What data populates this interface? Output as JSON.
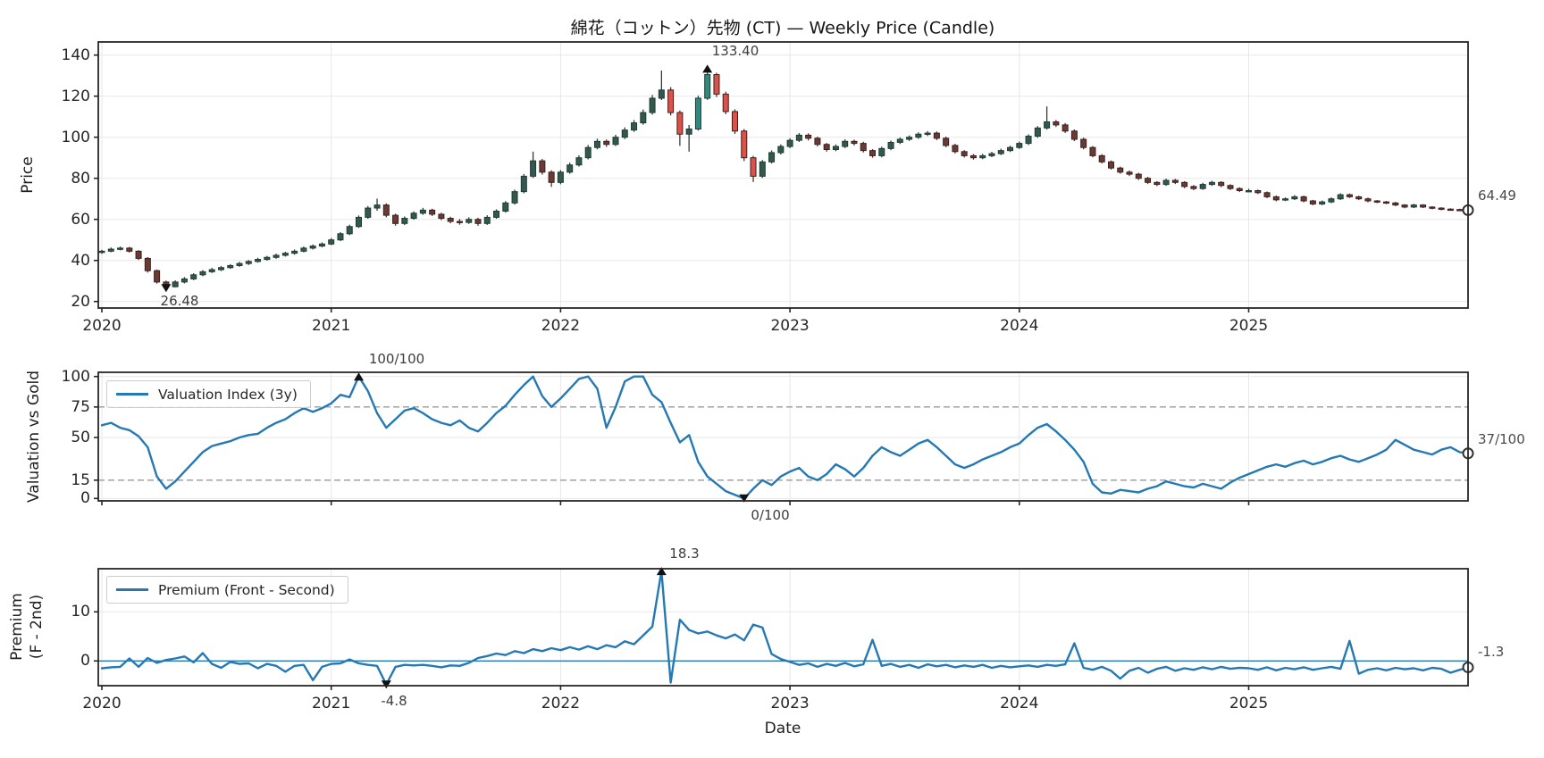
{
  "chart_data": [
    {
      "type": "candlestick",
      "title": "綿花（コットン）先物 (CT) — Weekly Price (Candle)",
      "ylabel": "Price",
      "yticks": [
        140,
        120,
        100,
        80,
        60,
        40,
        20
      ],
      "ylim": [
        17,
        146.5
      ],
      "x_start": 2020.0,
      "x_step": 0.04,
      "x_tick_labels": [
        "2020",
        "2021",
        "2022",
        "2023",
        "2024",
        "2025"
      ],
      "grid": true,
      "up_color": "#33584e",
      "down_color": "#6b3a34",
      "up_color_strong": "#2e8b7f",
      "down_color_strong": "#d9534a",
      "annotations": [
        {
          "label": "133.40",
          "t": 2022.64,
          "value": 133.4,
          "marker": "up"
        },
        {
          "label": "26.48",
          "t": 2020.28,
          "value": 26.48,
          "marker": "down"
        }
      ],
      "last_label": "64.49",
      "last_value": 64.49,
      "ohlc": [
        [
          44.0,
          45.2,
          43.2,
          44.5
        ],
        [
          44.5,
          46.3,
          44.0,
          45.5
        ],
        [
          45.5,
          46.8,
          44.9,
          46.0
        ],
        [
          46.0,
          46.6,
          43.8,
          44.5
        ],
        [
          44.5,
          45.0,
          40.2,
          41.0
        ],
        [
          41.0,
          41.6,
          34.1,
          35.0
        ],
        [
          35.0,
          35.6,
          28.7,
          29.5
        ],
        [
          29.5,
          30.2,
          26.48,
          27.2
        ],
        [
          27.2,
          30.3,
          26.9,
          29.5
        ],
        [
          29.5,
          31.9,
          28.8,
          31.0
        ],
        [
          31.0,
          33.8,
          30.4,
          33.0
        ],
        [
          33.0,
          35.3,
          32.3,
          34.5
        ],
        [
          34.5,
          36.4,
          33.9,
          35.5
        ],
        [
          35.5,
          37.3,
          34.8,
          36.5
        ],
        [
          36.5,
          38.2,
          35.9,
          37.5
        ],
        [
          37.5,
          39.3,
          36.9,
          38.5
        ],
        [
          38.5,
          40.2,
          37.8,
          39.5
        ],
        [
          39.5,
          41.3,
          38.9,
          40.5
        ],
        [
          40.5,
          42.2,
          39.9,
          41.5
        ],
        [
          41.5,
          43.3,
          40.8,
          42.5
        ],
        [
          42.5,
          44.2,
          41.9,
          43.5
        ],
        [
          43.5,
          45.3,
          42.8,
          44.5
        ],
        [
          44.5,
          46.8,
          43.9,
          46.0
        ],
        [
          46.0,
          47.8,
          45.3,
          47.0
        ],
        [
          47.0,
          48.8,
          46.4,
          48.0
        ],
        [
          48.0,
          50.9,
          47.4,
          50.0
        ],
        [
          50.0,
          53.8,
          49.4,
          53.0
        ],
        [
          53.0,
          57.4,
          52.3,
          56.5
        ],
        [
          56.5,
          61.9,
          55.8,
          61.0
        ],
        [
          61.0,
          66.5,
          60.3,
          65.5
        ],
        [
          65.5,
          70.1,
          64.2,
          67.0
        ],
        [
          67.0,
          67.8,
          61.0,
          62.0
        ],
        [
          62.0,
          62.8,
          56.9,
          58.0
        ],
        [
          58.0,
          61.4,
          57.2,
          60.5
        ],
        [
          60.5,
          63.9,
          59.8,
          63.0
        ],
        [
          63.0,
          65.6,
          62.2,
          64.5
        ],
        [
          64.5,
          65.2,
          61.6,
          62.5
        ],
        [
          62.5,
          63.2,
          59.6,
          60.5
        ],
        [
          60.5,
          61.3,
          58.1,
          59.0
        ],
        [
          59.0,
          60.2,
          57.4,
          58.5
        ],
        [
          58.5,
          61.0,
          57.8,
          60.0
        ],
        [
          60.0,
          60.8,
          56.9,
          58.0
        ],
        [
          58.0,
          62.0,
          57.3,
          61.0
        ],
        [
          61.0,
          64.9,
          60.3,
          64.0
        ],
        [
          64.0,
          68.9,
          63.3,
          68.0
        ],
        [
          68.0,
          74.5,
          67.2,
          73.5
        ],
        [
          73.5,
          82.1,
          72.7,
          81.0
        ],
        [
          81.0,
          93.0,
          80.2,
          88.5
        ],
        [
          88.5,
          89.4,
          81.8,
          83.0
        ],
        [
          83.0,
          83.9,
          75.8,
          78.0
        ],
        [
          78.0,
          84.0,
          77.1,
          83.0
        ],
        [
          83.0,
          87.6,
          82.2,
          86.5
        ],
        [
          86.5,
          91.2,
          85.7,
          90.0
        ],
        [
          90.0,
          96.2,
          89.2,
          95.0
        ],
        [
          95.0,
          99.3,
          94.1,
          98.0
        ],
        [
          98.0,
          98.9,
          95.3,
          96.5
        ],
        [
          96.5,
          101.2,
          95.7,
          100.0
        ],
        [
          100.0,
          104.8,
          99.1,
          103.5
        ],
        [
          103.5,
          108.4,
          102.6,
          107.0
        ],
        [
          107.0,
          113.5,
          106.1,
          112.0
        ],
        [
          112.0,
          120.6,
          111.0,
          119.0
        ],
        [
          119.0,
          132.5,
          118.1,
          123.0
        ],
        [
          123.0,
          124.4,
          110.6,
          112.0
        ],
        [
          112.0,
          113.0,
          95.8,
          101.5
        ],
        [
          101.5,
          106.0,
          93.0,
          104.0
        ],
        [
          104.0,
          120.2,
          103.2,
          119.0
        ],
        [
          119.0,
          133.4,
          118.2,
          130.5
        ],
        [
          130.5,
          131.4,
          119.6,
          121.0
        ],
        [
          121.0,
          122.2,
          111.2,
          112.5
        ],
        [
          112.5,
          113.6,
          101.6,
          103.0
        ],
        [
          103.0,
          104.0,
          88.4,
          90.0
        ],
        [
          90.0,
          90.9,
          78.2,
          81.0
        ],
        [
          81.0,
          88.9,
          80.2,
          88.0
        ],
        [
          88.0,
          93.6,
          87.2,
          92.5
        ],
        [
          92.5,
          96.5,
          91.6,
          95.5
        ],
        [
          95.5,
          99.5,
          94.7,
          98.5
        ],
        [
          98.5,
          102.0,
          97.7,
          101.0
        ],
        [
          101.0,
          101.9,
          98.4,
          99.5
        ],
        [
          99.5,
          100.3,
          95.5,
          96.5
        ],
        [
          96.5,
          97.2,
          93.0,
          94.0
        ],
        [
          94.0,
          96.5,
          93.2,
          95.5
        ],
        [
          95.5,
          99.0,
          94.7,
          98.0
        ],
        [
          98.0,
          98.8,
          96.0,
          97.0
        ],
        [
          97.0,
          97.8,
          92.6,
          93.5
        ],
        [
          93.5,
          94.2,
          90.0,
          91.0
        ],
        [
          91.0,
          95.4,
          90.2,
          94.5
        ],
        [
          94.5,
          98.4,
          93.7,
          97.5
        ],
        [
          97.5,
          99.9,
          96.7,
          99.0
        ],
        [
          99.0,
          100.9,
          98.2,
          100.0
        ],
        [
          100.0,
          102.4,
          99.2,
          101.5
        ],
        [
          101.5,
          103.0,
          100.6,
          102.0
        ],
        [
          102.0,
          102.8,
          98.6,
          99.5
        ],
        [
          99.5,
          100.3,
          95.1,
          96.0
        ],
        [
          96.0,
          96.8,
          92.1,
          93.0
        ],
        [
          93.0,
          93.7,
          90.1,
          91.0
        ],
        [
          91.0,
          91.8,
          89.1,
          90.0
        ],
        [
          90.0,
          91.9,
          89.3,
          91.0
        ],
        [
          91.0,
          92.9,
          90.3,
          92.0
        ],
        [
          92.0,
          94.4,
          91.3,
          93.5
        ],
        [
          93.5,
          95.9,
          92.8,
          95.0
        ],
        [
          95.0,
          97.9,
          94.3,
          97.0
        ],
        [
          97.0,
          101.4,
          96.2,
          100.5
        ],
        [
          100.5,
          105.4,
          99.7,
          104.5
        ],
        [
          104.5,
          115.0,
          103.7,
          107.5
        ],
        [
          107.5,
          108.4,
          105.0,
          106.0
        ],
        [
          106.0,
          106.9,
          102.1,
          103.0
        ],
        [
          103.0,
          103.8,
          98.1,
          99.0
        ],
        [
          99.0,
          99.8,
          94.1,
          95.0
        ],
        [
          95.0,
          95.7,
          90.2,
          91.0
        ],
        [
          91.0,
          91.8,
          87.2,
          88.0
        ],
        [
          88.0,
          88.7,
          84.2,
          85.0
        ],
        [
          85.0,
          85.7,
          82.2,
          83.0
        ],
        [
          83.0,
          83.8,
          81.1,
          82.0
        ],
        [
          82.0,
          82.7,
          79.2,
          80.0
        ],
        [
          80.0,
          80.7,
          77.2,
          78.0
        ],
        [
          78.0,
          78.6,
          76.2,
          77.0
        ],
        [
          77.0,
          79.8,
          76.3,
          79.0
        ],
        [
          79.0,
          79.7,
          77.2,
          78.0
        ],
        [
          78.0,
          78.6,
          75.2,
          76.0
        ],
        [
          76.0,
          76.7,
          74.2,
          75.0
        ],
        [
          75.0,
          77.8,
          74.4,
          77.0
        ],
        [
          77.0,
          78.8,
          76.3,
          78.0
        ],
        [
          78.0,
          78.6,
          75.7,
          76.5
        ],
        [
          76.5,
          77.1,
          74.3,
          75.0
        ],
        [
          75.0,
          75.6,
          73.3,
          74.0
        ],
        [
          74.0,
          74.9,
          73.3,
          74.0
        ],
        [
          74.0,
          74.5,
          72.3,
          73.0
        ],
        [
          73.0,
          73.6,
          70.3,
          71.0
        ],
        [
          71.0,
          71.6,
          68.8,
          69.5
        ],
        [
          69.5,
          70.7,
          68.9,
          70.0
        ],
        [
          70.0,
          71.8,
          69.4,
          71.0
        ],
        [
          71.0,
          71.6,
          68.3,
          69.0
        ],
        [
          69.0,
          69.5,
          66.9,
          67.5
        ],
        [
          67.5,
          69.2,
          66.9,
          68.5
        ],
        [
          68.5,
          70.7,
          67.9,
          70.0
        ],
        [
          70.0,
          72.7,
          69.4,
          72.0
        ],
        [
          72.0,
          72.6,
          70.4,
          71.0
        ],
        [
          71.0,
          71.5,
          69.4,
          70.0
        ],
        [
          70.0,
          70.6,
          68.3,
          69.0
        ],
        [
          69.0,
          69.4,
          67.9,
          68.5
        ],
        [
          68.5,
          69.0,
          67.4,
          68.0
        ],
        [
          68.0,
          68.5,
          66.4,
          67.0
        ],
        [
          67.0,
          67.4,
          65.4,
          66.0
        ],
        [
          66.0,
          67.6,
          65.5,
          67.0
        ],
        [
          67.0,
          67.4,
          65.5,
          66.0
        ],
        [
          66.0,
          66.4,
          64.9,
          65.5
        ],
        [
          65.5,
          65.9,
          64.4,
          65.0
        ],
        [
          65.0,
          65.4,
          64.2,
          64.8
        ],
        [
          64.8,
          65.2,
          64.1,
          64.6
        ],
        [
          64.6,
          65.0,
          63.8,
          64.49
        ]
      ]
    },
    {
      "type": "line",
      "name": "Valuation Index (3y)",
      "ylabel": "Valuation vs Gold",
      "yticks": [
        100,
        75,
        50,
        15,
        0
      ],
      "ylim": [
        -2,
        103.4
      ],
      "dashed_levels": [
        75,
        15
      ],
      "line_color": "#2479b5",
      "annotations": [
        {
          "label": "100/100",
          "t": 2021.12,
          "value": 100,
          "marker": "up"
        },
        {
          "label": "0/100",
          "t": 2022.8,
          "value": 0,
          "marker": "down"
        }
      ],
      "last_label": "37/100",
      "last_value": 37,
      "values": [
        60,
        62,
        58,
        56,
        51,
        42,
        18,
        8,
        14,
        22,
        30,
        38,
        43,
        45,
        47,
        50,
        52,
        53,
        58,
        62,
        65,
        70,
        74,
        71,
        74,
        78,
        85,
        83,
        100,
        88,
        70,
        58,
        65,
        72,
        74,
        70,
        65,
        62,
        60,
        64,
        58,
        55,
        62,
        70,
        76,
        85,
        93,
        100,
        84,
        75,
        82,
        90,
        98,
        100,
        90,
        58,
        75,
        96,
        100,
        100,
        85,
        79,
        62,
        46,
        52,
        30,
        18,
        12,
        6,
        3,
        0,
        8,
        15,
        11,
        18,
        22,
        25,
        18,
        15,
        20,
        28,
        24,
        18,
        25,
        35,
        42,
        38,
        35,
        40,
        45,
        48,
        42,
        35,
        28,
        25,
        28,
        32,
        35,
        38,
        42,
        45,
        52,
        58,
        61,
        55,
        48,
        40,
        30,
        12,
        5,
        4,
        7,
        6,
        5,
        8,
        10,
        14,
        12,
        10,
        9,
        12,
        10,
        8,
        13,
        17,
        20,
        23,
        26,
        28,
        26,
        29,
        31,
        28,
        30,
        33,
        35,
        32,
        30,
        33,
        36,
        40,
        48,
        44,
        40,
        38,
        36,
        40,
        42,
        38,
        37
      ]
    },
    {
      "type": "line",
      "name": "Premium (Front - Second)",
      "ylabel": "Premium\n(F - 2nd)",
      "xlabel": "Date",
      "yticks": [
        10,
        0
      ],
      "ylim": [
        -5.0,
        18.8
      ],
      "zero_line": true,
      "line_color": "#2479b5",
      "annotations": [
        {
          "label": "18.3",
          "t": 2022.44,
          "value": 18.3,
          "marker": "up"
        },
        {
          "label": "-4.8",
          "t": 2021.24,
          "value": -4.8,
          "marker": "down"
        }
      ],
      "last_label": "-1.3",
      "last_value": -1.3,
      "values": [
        -1.5,
        -1.3,
        -1.2,
        0.5,
        -1.2,
        0.6,
        -0.4,
        0.2,
        0.5,
        0.9,
        -0.3,
        1.6,
        -0.6,
        -1.4,
        -0.2,
        -0.6,
        -0.5,
        -1.5,
        -0.6,
        -1.0,
        -2.2,
        -1.0,
        -0.8,
        -3.9,
        -1.2,
        -0.6,
        -0.5,
        0.3,
        -0.5,
        -0.8,
        -1.0,
        -4.8,
        -1.2,
        -0.8,
        -0.9,
        -0.8,
        -1.0,
        -1.3,
        -0.9,
        -1.0,
        -0.4,
        0.6,
        1.0,
        1.5,
        1.2,
        2.0,
        1.6,
        2.4,
        2.0,
        2.6,
        2.2,
        2.8,
        2.3,
        3.0,
        2.4,
        3.2,
        2.8,
        4.0,
        3.4,
        5.2,
        7.0,
        18.3,
        -4.4,
        8.4,
        6.3,
        5.6,
        6.0,
        5.2,
        4.6,
        5.4,
        4.2,
        7.4,
        6.8,
        1.4,
        0.4,
        -0.2,
        -0.8,
        -0.5,
        -1.2,
        -0.6,
        -1.0,
        -0.4,
        -1.1,
        -0.7,
        4.3,
        -1.0,
        -0.6,
        -1.2,
        -0.8,
        -1.4,
        -0.7,
        -1.1,
        -0.8,
        -1.3,
        -0.9,
        -1.2,
        -0.8,
        -1.4,
        -1.0,
        -1.3,
        -1.1,
        -0.9,
        -1.2,
        -0.8,
        -1.0,
        -0.7,
        3.6,
        -1.4,
        -1.8,
        -1.2,
        -2.0,
        -3.6,
        -2.0,
        -1.4,
        -2.4,
        -1.6,
        -1.2,
        -2.0,
        -1.5,
        -1.8,
        -1.3,
        -1.7,
        -1.2,
        -1.6,
        -1.4,
        -1.5,
        -1.8,
        -1.3,
        -1.9,
        -1.4,
        -1.7,
        -1.3,
        -1.8,
        -1.5,
        -1.2,
        -1.6,
        4.1,
        -2.6,
        -1.8,
        -1.5,
        -1.9,
        -1.4,
        -1.7,
        -1.5,
        -1.9,
        -1.4,
        -1.6,
        -2.4,
        -1.8,
        -1.3
      ]
    }
  ]
}
